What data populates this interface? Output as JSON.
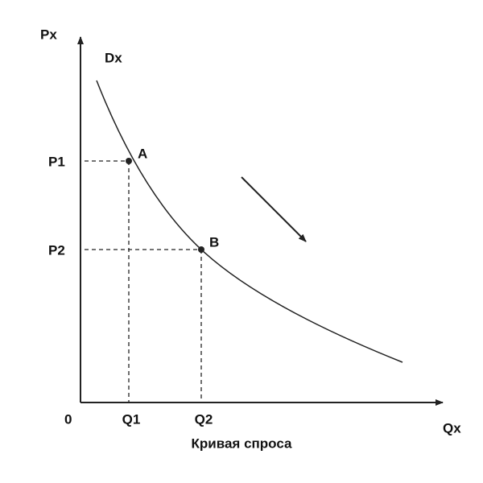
{
  "diagram": {
    "axes": {
      "y_label": "Px",
      "x_label": "Qx",
      "origin": "0"
    },
    "curve_label": "Dx",
    "points": [
      {
        "label": "A",
        "price": "P1",
        "quantity": "Q1"
      },
      {
        "label": "B",
        "price": "P2",
        "quantity": "Q2"
      }
    ],
    "caption": "Кривая спроса"
  }
}
